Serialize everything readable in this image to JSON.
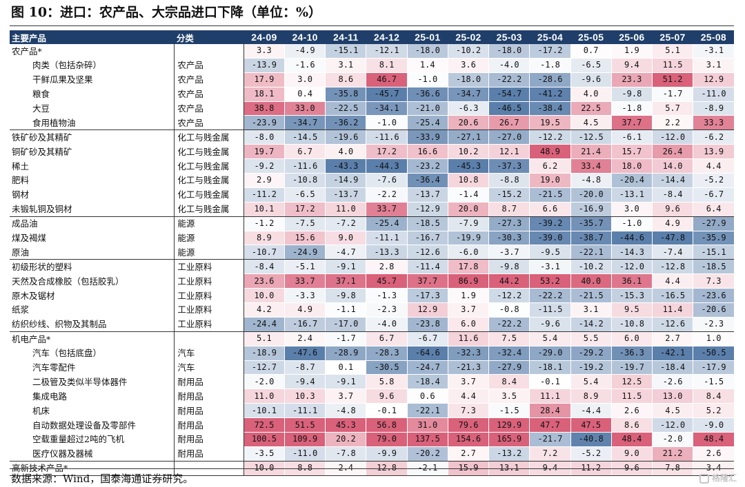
{
  "title": "图 10：进口：农产品、大宗品进口下降（单位：%）",
  "source": "数据来源：Wind，国泰海通证券研究。",
  "watermark": "格隆汇",
  "colors": {
    "header_bg": "#1f3f6a",
    "negative": "#5b7fab",
    "positive": "#d9617a"
  },
  "headers": {
    "product": "主要产品",
    "category": "分类",
    "months": [
      "24-09",
      "24-10",
      "24-11",
      "24-12",
      "25-01",
      "25-02",
      "25-03",
      "25-04",
      "25-05",
      "25-06",
      "25-07",
      "25-08"
    ]
  },
  "rows": [
    {
      "product": "农产品*",
      "category": "",
      "indent": false,
      "values": [
        "3.3",
        "-4.9",
        "-15.1",
        "-12.1",
        "-18.0",
        "-10.2",
        "-18.0",
        "-17.2",
        "0.7",
        "1.9",
        "5.1",
        "-3.1"
      ]
    },
    {
      "product": "肉类（包括杂碎）",
      "category": "农产品",
      "indent": true,
      "values": [
        "-13.9",
        "-1.6",
        "3.1",
        "8.1",
        "1.4",
        "3.6",
        "-4.0",
        "-1.8",
        "-6.5",
        "9.4",
        "11.5",
        "3.1"
      ]
    },
    {
      "product": "干鲜瓜果及坚果",
      "category": "农产品",
      "indent": true,
      "values": [
        "17.9",
        "3.0",
        "8.6",
        "46.7",
        "-1.0",
        "-18.0",
        "-22.2",
        "-28.6",
        "-9.6",
        "23.3",
        "51.2",
        "12.9"
      ]
    },
    {
      "product": "粮食",
      "category": "农产品",
      "indent": true,
      "values": [
        "18.1",
        "0.4",
        "-35.8",
        "-45.7",
        "-36.6",
        "-34.7",
        "-54.7",
        "-41.2",
        "4.0",
        "-9.8",
        "-1.7",
        "-11.0"
      ]
    },
    {
      "product": "大豆",
      "category": "农产品",
      "indent": true,
      "values": [
        "38.8",
        "33.0",
        "-22.5",
        "-34.1",
        "-21.0",
        "-6.3",
        "-46.5",
        "-38.4",
        "22.5",
        "-1.8",
        "5.7",
        "-8.9"
      ]
    },
    {
      "product": "食用植物油",
      "category": "农产品",
      "indent": true,
      "end": true,
      "values": [
        "-23.9",
        "-34.7",
        "-36.2",
        "-1.0",
        "-25.4",
        "20.6",
        "26.7",
        "19.5",
        "4.5",
        "37.7",
        "2.2",
        "33.3"
      ]
    },
    {
      "product": "铁矿砂及其精矿",
      "category": "化工与贱金属",
      "indent": false,
      "values": [
        "-8.0",
        "-14.5",
        "-19.6",
        "-11.6",
        "-33.9",
        "-27.1",
        "-27.0",
        "-12.2",
        "-12.5",
        "-6.1",
        "-12.0",
        "-6.2"
      ]
    },
    {
      "product": "铜矿砂及其精矿",
      "category": "化工与贱金属",
      "indent": false,
      "values": [
        "19.7",
        "6.7",
        "4.0",
        "17.2",
        "16.6",
        "10.2",
        "12.1",
        "48.9",
        "21.4",
        "15.7",
        "26.4",
        "13.9"
      ]
    },
    {
      "product": "稀土",
      "category": "化工与贱金属",
      "indent": false,
      "values": [
        "-9.2",
        "-11.6",
        "-43.3",
        "-44.3",
        "-23.2",
        "-45.3",
        "-37.3",
        "6.2",
        "33.4",
        "18.0",
        "14.0",
        "4.4"
      ]
    },
    {
      "product": "肥料",
      "category": "化工与贱金属",
      "indent": false,
      "values": [
        "2.9",
        "-10.8",
        "-14.9",
        "-7.6",
        "-36.4",
        "10.8",
        "-8.8",
        "19.0",
        "-4.8",
        "-20.4",
        "-14.4",
        "-5.2"
      ]
    },
    {
      "product": "钢材",
      "category": "化工与贱金属",
      "indent": false,
      "values": [
        "-11.2",
        "-6.5",
        "-13.7",
        "-2.2",
        "-13.7",
        "-1.4",
        "-15.2",
        "-21.5",
        "-20.0",
        "-13.1",
        "-8.4",
        "-6.7"
      ]
    },
    {
      "product": "未锻轧铜及铜材",
      "category": "化工与贱金属",
      "indent": false,
      "end": true,
      "values": [
        "10.1",
        "17.2",
        "11.0",
        "33.7",
        "-12.9",
        "20.0",
        "8.7",
        "6.6",
        "-16.9",
        "3.0",
        "9.6",
        "6.4"
      ]
    },
    {
      "product": "成品油",
      "category": "能源",
      "indent": false,
      "values": [
        "-1.2",
        "-7.5",
        "-7.2",
        "-25.4",
        "-18.5",
        "-7.9",
        "-27.3",
        "-39.2",
        "-35.7",
        "-1.0",
        "4.9",
        "-27.9"
      ]
    },
    {
      "product": "煤及褐煤",
      "category": "能源",
      "indent": false,
      "values": [
        "8.9",
        "15.6",
        "9.0",
        "-11.1",
        "-16.7",
        "-19.9",
        "-30.3",
        "-39.0",
        "-38.7",
        "-44.6",
        "-47.8",
        "-35.9"
      ]
    },
    {
      "product": "原油",
      "category": "能源",
      "indent": false,
      "end": true,
      "values": [
        "-10.7",
        "-24.9",
        "-4.7",
        "-13.3",
        "-12.6",
        "-6.0",
        "-3.7",
        "-9.5",
        "-22.1",
        "-14.3",
        "-7.4",
        "-15.1"
      ]
    },
    {
      "product": "初级形状的塑料",
      "category": "工业原料",
      "indent": false,
      "values": [
        "-8.4",
        "-5.1",
        "-9.1",
        "2.8",
        "-11.4",
        "17.8",
        "-9.8",
        "-3.1",
        "-10.2",
        "-12.0",
        "-12.8",
        "-18.5"
      ]
    },
    {
      "product": "天然及合成橡胶（包括胶乳）",
      "category": "工业原料",
      "indent": false,
      "values": [
        "23.6",
        "33.7",
        "37.1",
        "45.7",
        "37.7",
        "86.9",
        "44.2",
        "53.2",
        "40.0",
        "36.1",
        "4.4",
        "7.3"
      ]
    },
    {
      "product": "原木及锯材",
      "category": "工业原料",
      "indent": false,
      "values": [
        "10.0",
        "-3.3",
        "-9.8",
        "-1.3",
        "-17.3",
        "1.9",
        "-12.2",
        "-22.2",
        "-21.5",
        "-15.3",
        "-16.5",
        "-23.6"
      ]
    },
    {
      "product": "纸浆",
      "category": "工业原料",
      "indent": false,
      "values": [
        "4.2",
        "4.9",
        "-1.1",
        "-2.3",
        "12.9",
        "3.7",
        "-0.8",
        "-11.5",
        "3.1",
        "9.5",
        "11.4",
        "-20.6"
      ]
    },
    {
      "product": "纺织纱线、织物及其制品",
      "category": "工业原料",
      "indent": false,
      "end": true,
      "values": [
        "-24.4",
        "-16.7",
        "-17.0",
        "-4.0",
        "-23.8",
        "6.0",
        "-22.2",
        "-9.6",
        "-14.2",
        "-10.8",
        "-12.6",
        "-2.3"
      ]
    },
    {
      "product": "机电产品*",
      "category": "",
      "indent": false,
      "values": [
        "5.1",
        "2.4",
        "-1.7",
        "6.7",
        "-6.7",
        "11.6",
        "7.5",
        "5.4",
        "5.5",
        "6.0",
        "2.7",
        "1.0"
      ]
    },
    {
      "product": "汽车（包括底盘）",
      "category": "汽车",
      "indent": true,
      "values": [
        "-18.9",
        "-47.6",
        "-28.9",
        "-28.3",
        "-64.6",
        "-32.3",
        "-32.4",
        "-29.0",
        "-29.2",
        "-36.3",
        "-42.1",
        "-50.5"
      ]
    },
    {
      "product": "汽车零配件",
      "category": "汽车",
      "indent": true,
      "values": [
        "-12.7",
        "-8.7",
        "0.1",
        "-30.5",
        "-24.7",
        "-21.3",
        "-27.9",
        "-18.1",
        "-19.2",
        "-19.7",
        "-18.4",
        "-17.9"
      ]
    },
    {
      "product": "二极管及类似半导体器件",
      "category": "耐用品",
      "indent": true,
      "values": [
        "-2.0",
        "-9.4",
        "-9.1",
        "5.8",
        "-18.4",
        "3.7",
        "8.4",
        "-0.1",
        "5.4",
        "12.5",
        "-2.6",
        "-1.5"
      ]
    },
    {
      "product": "集成电路",
      "category": "耐用品",
      "indent": true,
      "values": [
        "11.0",
        "10.3",
        "3.7",
        "9.6",
        "0.6",
        "4.4",
        "3.5",
        "11.1",
        "8.9",
        "11.5",
        "13.0",
        "8.4"
      ]
    },
    {
      "product": "机床",
      "category": "耐用品",
      "indent": true,
      "values": [
        "-10.1",
        "-11.1",
        "-4.8",
        "-0.1",
        "-22.1",
        "7.3",
        "-1.5",
        "28.4",
        "-4.4",
        "2.6",
        "4.5",
        "5.2"
      ]
    },
    {
      "product": "自动数据处理设备及零部件",
      "category": "耐用品",
      "indent": true,
      "values": [
        "72.5",
        "51.5",
        "45.3",
        "56.8",
        "31.0",
        "79.6",
        "129.9",
        "47.7",
        "47.5",
        "8.6",
        "-12.0",
        "-9.0"
      ]
    },
    {
      "product": "空载重量超过2吨的飞机",
      "category": "耐用品",
      "indent": true,
      "values": [
        "100.5",
        "109.9",
        "20.2",
        "79.0",
        "137.5",
        "154.6",
        "165.9",
        "-21.7",
        "-40.8",
        "48.4",
        "-2.0",
        "48.4"
      ]
    },
    {
      "product": "医疗仪器及器械",
      "category": "耐用品",
      "indent": true,
      "end": true,
      "values": [
        "-3.5",
        "-11.0",
        "-7.8",
        "-9.9",
        "-20.2",
        "2.7",
        "-13.2",
        "7.2",
        "-5.2",
        "9.0",
        "21.2",
        "2.6"
      ]
    },
    {
      "product": "高新技术产品*",
      "category": "",
      "indent": false,
      "end": true,
      "values": [
        "10.0",
        "8.8",
        "2.4",
        "12.8",
        "-2.1",
        "15.9",
        "13.1",
        "9.4",
        "11.2",
        "9.6",
        "7.8",
        "3.4"
      ]
    }
  ]
}
